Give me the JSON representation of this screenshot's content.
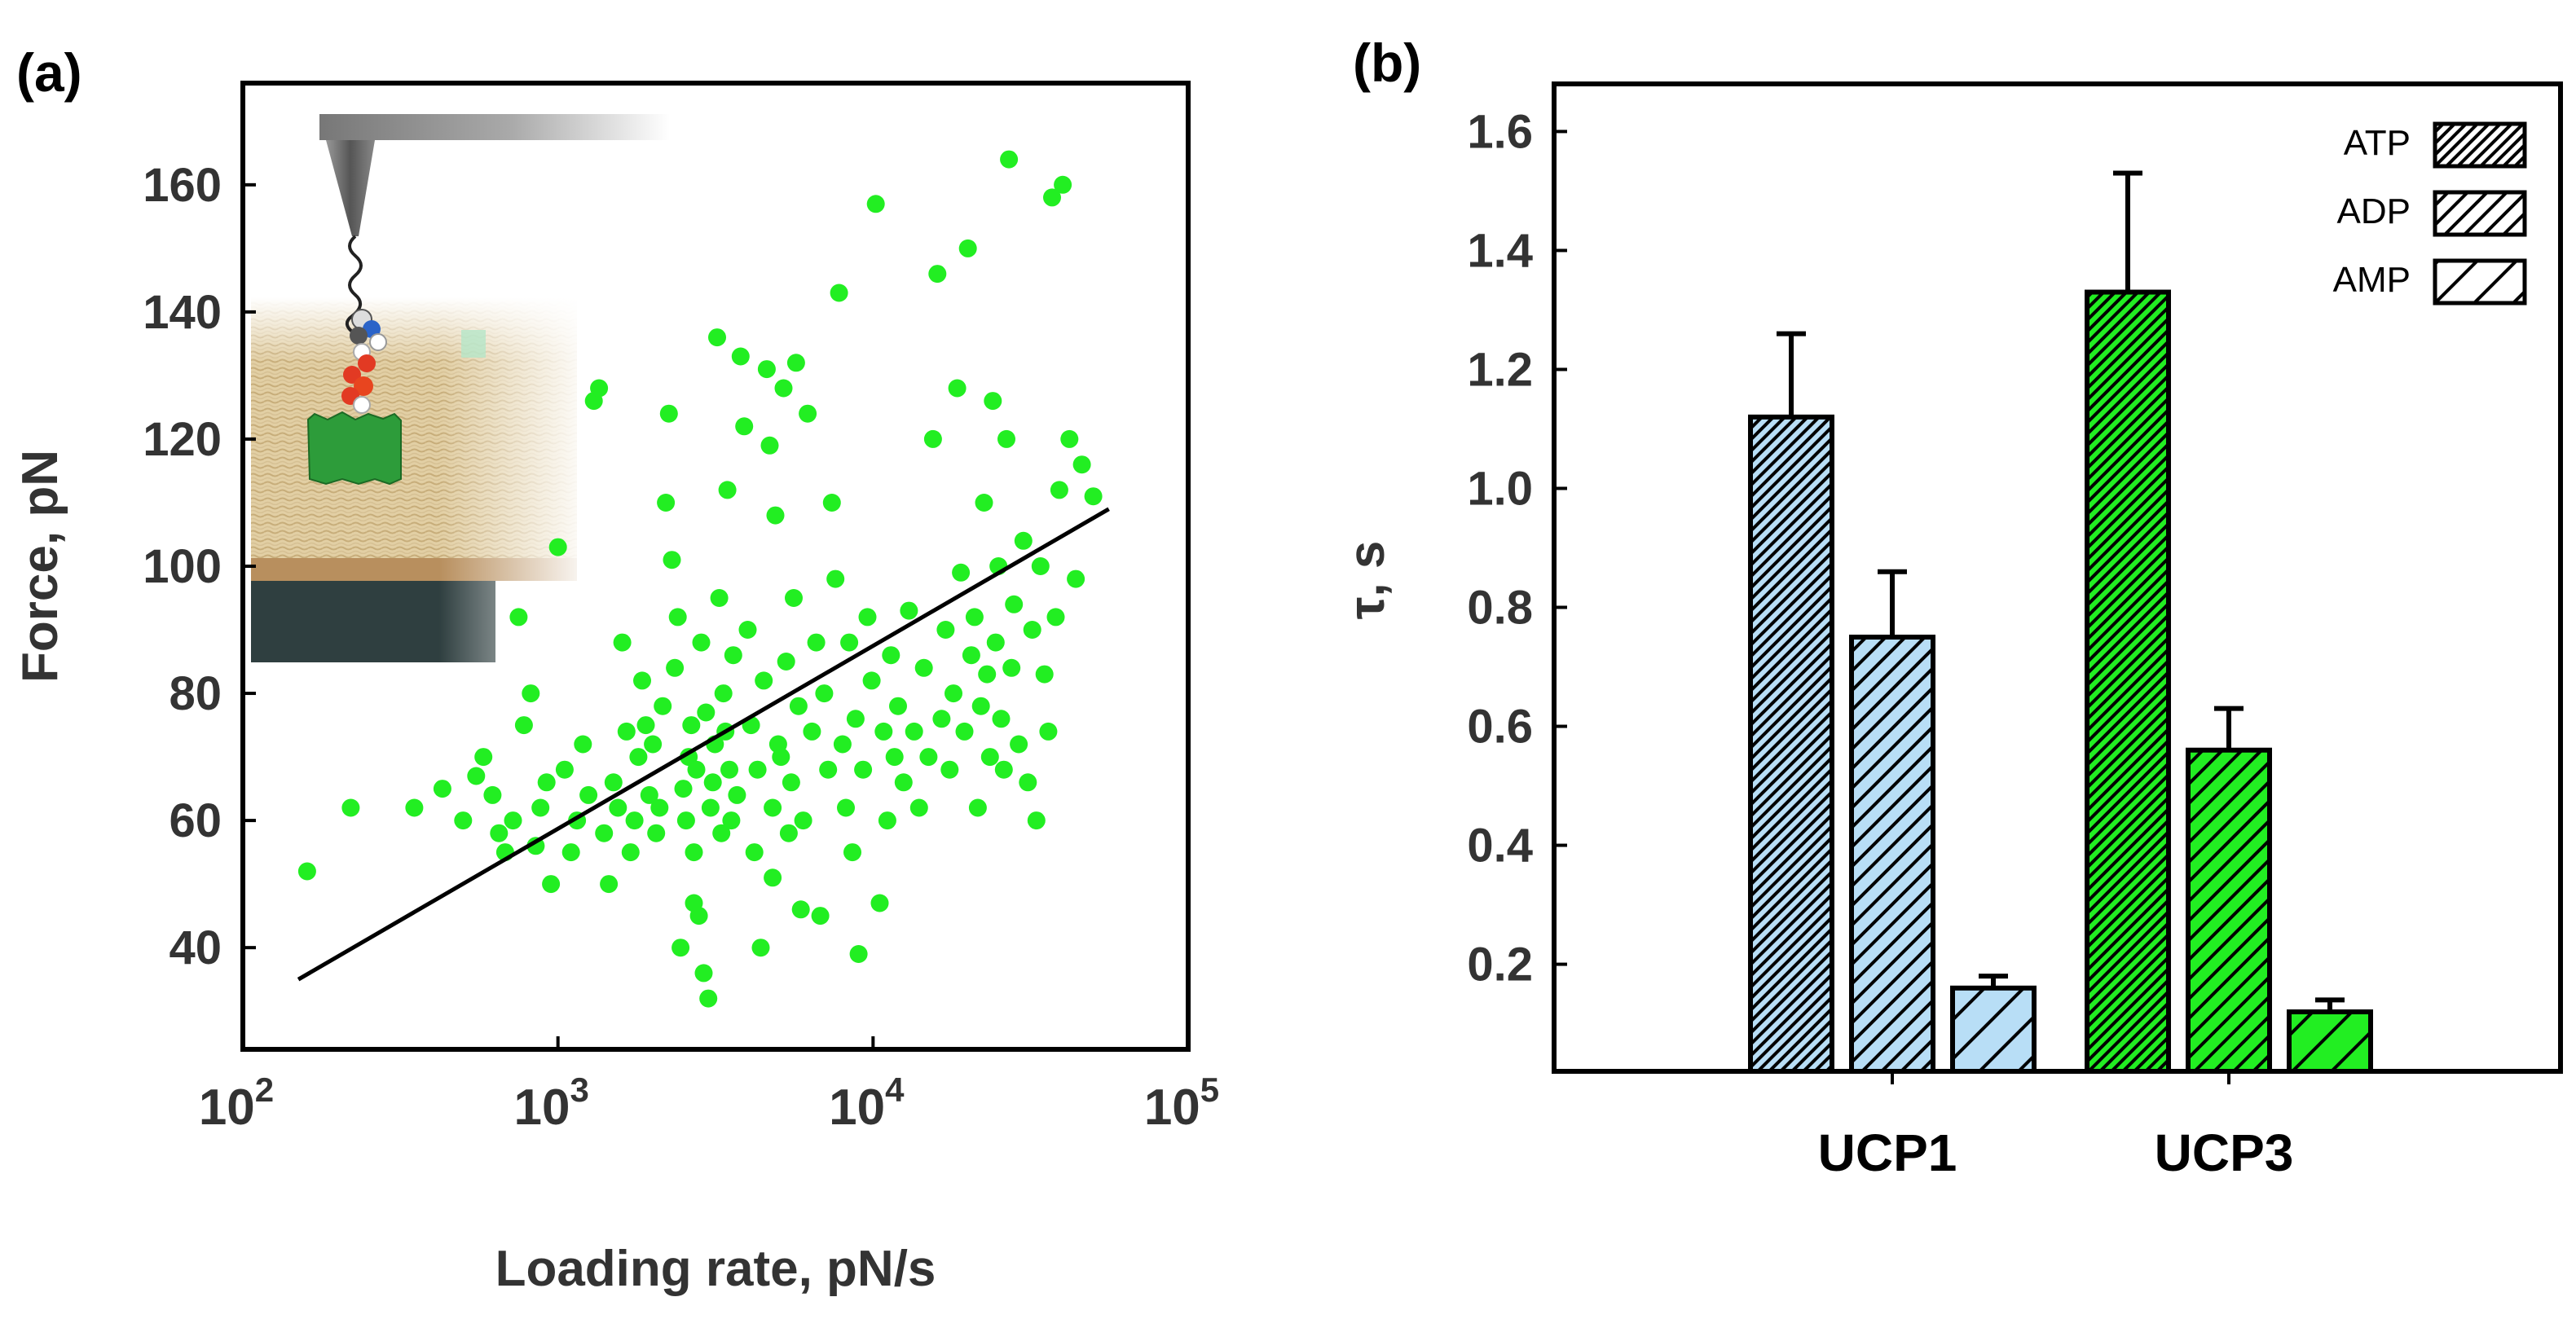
{
  "panel_labels": {
    "a": "(a)",
    "b": "(b)"
  },
  "chart_data": [
    {
      "id": "a",
      "type": "scatter",
      "title": "",
      "xlabel": "Loading rate, pN/s",
      "ylabel": "Force, pN",
      "xscale": "log",
      "xlim": [
        100,
        100000
      ],
      "ylim": [
        24,
        176
      ],
      "xticks": [
        {
          "value": 100,
          "base": "10",
          "exp": "2"
        },
        {
          "value": 1000,
          "base": "10",
          "exp": "3"
        },
        {
          "value": 10000,
          "base": "10",
          "exp": "4"
        },
        {
          "value": 100000,
          "base": "10",
          "exp": "5"
        }
      ],
      "yticks": [
        40,
        60,
        80,
        100,
        120,
        140,
        160
      ],
      "point_color": "#22ee22",
      "fit_line": {
        "color": "#000000",
        "points": [
          [
            150,
            35
          ],
          [
            56000,
            109
          ]
        ]
      },
      "inset": "AFM tip, ligand and membrane protein schematic",
      "points": [
        [
          160,
          52
        ],
        [
          220,
          62
        ],
        [
          350,
          62
        ],
        [
          430,
          65
        ],
        [
          500,
          60
        ],
        [
          550,
          67
        ],
        [
          580,
          70
        ],
        [
          620,
          64
        ],
        [
          650,
          58
        ],
        [
          680,
          55
        ],
        [
          720,
          60
        ],
        [
          750,
          92
        ],
        [
          780,
          75
        ],
        [
          820,
          80
        ],
        [
          850,
          56
        ],
        [
          880,
          62
        ],
        [
          920,
          66
        ],
        [
          950,
          50
        ],
        [
          1000,
          103
        ],
        [
          1050,
          68
        ],
        [
          1100,
          55
        ],
        [
          1150,
          60
        ],
        [
          1200,
          72
        ],
        [
          1250,
          64
        ],
        [
          1300,
          126
        ],
        [
          1350,
          128
        ],
        [
          1400,
          58
        ],
        [
          1450,
          50
        ],
        [
          1500,
          66
        ],
        [
          1550,
          62
        ],
        [
          1600,
          88
        ],
        [
          1650,
          74
        ],
        [
          1700,
          55
        ],
        [
          1750,
          60
        ],
        [
          1800,
          70
        ],
        [
          1850,
          82
        ],
        [
          1900,
          75
        ],
        [
          1950,
          64
        ],
        [
          2000,
          72
        ],
        [
          2050,
          58
        ],
        [
          2100,
          62
        ],
        [
          2150,
          78
        ],
        [
          2200,
          110
        ],
        [
          2250,
          124
        ],
        [
          2300,
          101
        ],
        [
          2350,
          84
        ],
        [
          2400,
          92
        ],
        [
          2450,
          40
        ],
        [
          2500,
          65
        ],
        [
          2550,
          60
        ],
        [
          2600,
          70
        ],
        [
          2650,
          75
        ],
        [
          2700,
          55
        ],
        [
          2750,
          68
        ],
        [
          2800,
          45
        ],
        [
          2850,
          88
        ],
        [
          2900,
          36
        ],
        [
          2950,
          77
        ],
        [
          3000,
          32
        ],
        [
          3050,
          62
        ],
        [
          3100,
          66
        ],
        [
          3150,
          72
        ],
        [
          3200,
          136
        ],
        [
          3250,
          95
        ],
        [
          3300,
          58
        ],
        [
          3350,
          80
        ],
        [
          3400,
          74
        ],
        [
          3450,
          112
        ],
        [
          3500,
          68
        ],
        [
          3550,
          60
        ],
        [
          3600,
          86
        ],
        [
          3700,
          64
        ],
        [
          3800,
          133
        ],
        [
          3900,
          122
        ],
        [
          4000,
          90
        ],
        [
          4100,
          75
        ],
        [
          4200,
          55
        ],
        [
          4300,
          68
        ],
        [
          4400,
          40
        ],
        [
          4500,
          82
        ],
        [
          4600,
          131
        ],
        [
          4700,
          119
        ],
        [
          4800,
          62
        ],
        [
          4900,
          108
        ],
        [
          5000,
          72
        ],
        [
          5100,
          70
        ],
        [
          5200,
          128
        ],
        [
          5300,
          85
        ],
        [
          5400,
          58
        ],
        [
          5500,
          66
        ],
        [
          5600,
          95
        ],
        [
          5700,
          132
        ],
        [
          5800,
          78
        ],
        [
          5900,
          46
        ],
        [
          6000,
          60
        ],
        [
          6200,
          124
        ],
        [
          6400,
          74
        ],
        [
          6600,
          88
        ],
        [
          6800,
          45
        ],
        [
          7000,
          80
        ],
        [
          7200,
          68
        ],
        [
          7400,
          110
        ],
        [
          7600,
          98
        ],
        [
          7800,
          143
        ],
        [
          8000,
          72
        ],
        [
          8200,
          62
        ],
        [
          8400,
          88
        ],
        [
          8600,
          55
        ],
        [
          8800,
          76
        ],
        [
          9000,
          39
        ],
        [
          9300,
          68
        ],
        [
          9600,
          92
        ],
        [
          9900,
          82
        ],
        [
          10200,
          157
        ],
        [
          10500,
          47
        ],
        [
          10800,
          74
        ],
        [
          11100,
          60
        ],
        [
          11400,
          86
        ],
        [
          11700,
          70
        ],
        [
          12000,
          78
        ],
        [
          12500,
          66
        ],
        [
          13000,
          93
        ],
        [
          13500,
          74
        ],
        [
          14000,
          62
        ],
        [
          14500,
          84
        ],
        [
          15000,
          70
        ],
        [
          15500,
          120
        ],
        [
          16000,
          146
        ],
        [
          16500,
          76
        ],
        [
          17000,
          90
        ],
        [
          17500,
          68
        ],
        [
          18000,
          80
        ],
        [
          18500,
          128
        ],
        [
          19000,
          99
        ],
        [
          19500,
          74
        ],
        [
          20000,
          150
        ],
        [
          20500,
          86
        ],
        [
          21000,
          92
        ],
        [
          21500,
          62
        ],
        [
          22000,
          78
        ],
        [
          22500,
          110
        ],
        [
          23000,
          83
        ],
        [
          23500,
          70
        ],
        [
          24000,
          126
        ],
        [
          24500,
          88
        ],
        [
          25000,
          100
        ],
        [
          25500,
          76
        ],
        [
          26000,
          68
        ],
        [
          26500,
          120
        ],
        [
          27000,
          164
        ],
        [
          27500,
          84
        ],
        [
          28000,
          94
        ],
        [
          29000,
          72
        ],
        [
          30000,
          104
        ],
        [
          31000,
          66
        ],
        [
          32000,
          90
        ],
        [
          33000,
          60
        ],
        [
          34000,
          100
        ],
        [
          35000,
          83
        ],
        [
          36000,
          74
        ],
        [
          37000,
          158
        ],
        [
          38000,
          92
        ],
        [
          39000,
          112
        ],
        [
          40000,
          160
        ],
        [
          42000,
          120
        ],
        [
          44000,
          98
        ],
        [
          46000,
          116
        ],
        [
          50000,
          111
        ],
        [
          2700,
          47
        ],
        [
          4800,
          51
        ]
      ]
    },
    {
      "id": "b",
      "type": "bar",
      "title": "",
      "xlabel": "",
      "ylabel": "τ, s",
      "ylim": [
        0.02,
        1.68
      ],
      "yticks": [
        "0.2",
        "0.4",
        "0.6",
        "0.8",
        "1.0",
        "1.2",
        "1.4",
        "1.6"
      ],
      "categories": [
        "UCP1",
        "UCP3"
      ],
      "category_colors": [
        "#b8def6",
        "#22ee22"
      ],
      "legend_position": "top-right",
      "series": [
        {
          "name": "ATP",
          "values": [
            1.12,
            1.33
          ],
          "errors": [
            0.14,
            0.2
          ],
          "hatch": "dense"
        },
        {
          "name": "ADP",
          "values": [
            0.75,
            0.56
          ],
          "errors": [
            0.11,
            0.07
          ],
          "hatch": "medium"
        },
        {
          "name": "AMP",
          "values": [
            0.16,
            0.12
          ],
          "errors": [
            0.02,
            0.02
          ],
          "hatch": "sparse"
        }
      ]
    }
  ]
}
